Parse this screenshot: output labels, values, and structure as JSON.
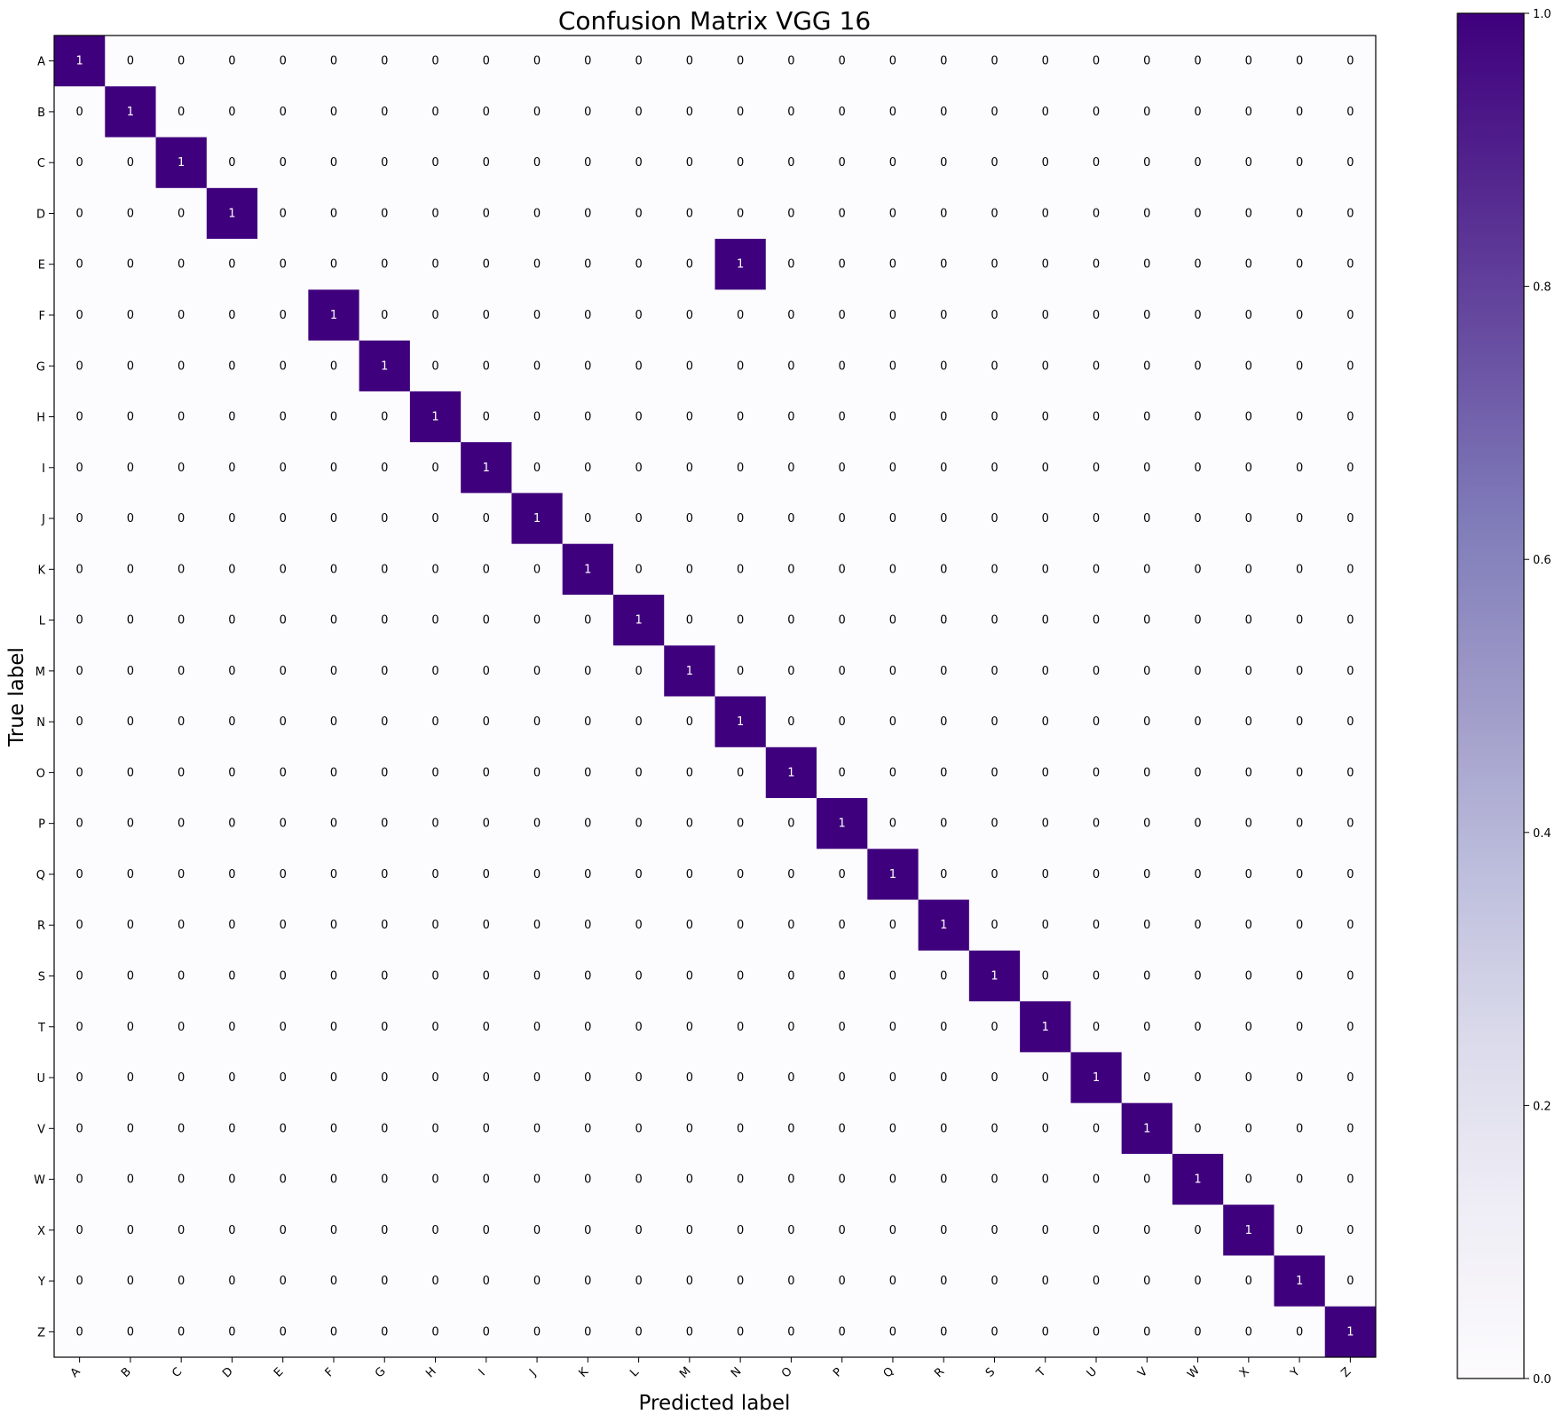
{
  "chart_data": {
    "type": "heatmap",
    "title": "Confusion Matrix VGG 16",
    "xlabel": "Predicted label",
    "ylabel": "True label",
    "x_categories": [
      "A",
      "B",
      "C",
      "D",
      "E",
      "F",
      "G",
      "H",
      "I",
      "J",
      "K",
      "L",
      "M",
      "N",
      "O",
      "P",
      "Q",
      "R",
      "S",
      "T",
      "U",
      "V",
      "W",
      "X",
      "Y",
      "Z"
    ],
    "y_categories": [
      "A",
      "B",
      "C",
      "D",
      "E",
      "F",
      "G",
      "H",
      "I",
      "J",
      "K",
      "L",
      "M",
      "N",
      "O",
      "P",
      "Q",
      "R",
      "S",
      "T",
      "U",
      "V",
      "W",
      "X",
      "Y",
      "Z"
    ],
    "nonzero_cells": [
      {
        "true": "A",
        "predicted": "A",
        "value": 1
      },
      {
        "true": "B",
        "predicted": "B",
        "value": 1
      },
      {
        "true": "C",
        "predicted": "C",
        "value": 1
      },
      {
        "true": "D",
        "predicted": "D",
        "value": 1
      },
      {
        "true": "E",
        "predicted": "N",
        "value": 1
      },
      {
        "true": "F",
        "predicted": "F",
        "value": 1
      },
      {
        "true": "G",
        "predicted": "G",
        "value": 1
      },
      {
        "true": "H",
        "predicted": "H",
        "value": 1
      },
      {
        "true": "I",
        "predicted": "I",
        "value": 1
      },
      {
        "true": "J",
        "predicted": "J",
        "value": 1
      },
      {
        "true": "K",
        "predicted": "K",
        "value": 1
      },
      {
        "true": "L",
        "predicted": "L",
        "value": 1
      },
      {
        "true": "M",
        "predicted": "M",
        "value": 1
      },
      {
        "true": "N",
        "predicted": "N",
        "value": 1
      },
      {
        "true": "O",
        "predicted": "O",
        "value": 1
      },
      {
        "true": "P",
        "predicted": "P",
        "value": 1
      },
      {
        "true": "Q",
        "predicted": "Q",
        "value": 1
      },
      {
        "true": "R",
        "predicted": "R",
        "value": 1
      },
      {
        "true": "S",
        "predicted": "S",
        "value": 1
      },
      {
        "true": "T",
        "predicted": "T",
        "value": 1
      },
      {
        "true": "U",
        "predicted": "U",
        "value": 1
      },
      {
        "true": "V",
        "predicted": "V",
        "value": 1
      },
      {
        "true": "W",
        "predicted": "W",
        "value": 1
      },
      {
        "true": "X",
        "predicted": "X",
        "value": 1
      },
      {
        "true": "Y",
        "predicted": "Y",
        "value": 1
      },
      {
        "true": "Z",
        "predicted": "Z",
        "value": 1
      }
    ],
    "default_value": 0,
    "colorbar": {
      "range": [
        0.0,
        1.0
      ],
      "ticks": [
        "0.0",
        "0.2",
        "0.4",
        "0.6",
        "0.8",
        "1.0"
      ],
      "cmap": "Purples",
      "low_color": "#fcfbfd",
      "high_color": "#3f007d"
    },
    "text_color_on_dark": "#ffffff",
    "text_color_on_light": "#000000"
  }
}
